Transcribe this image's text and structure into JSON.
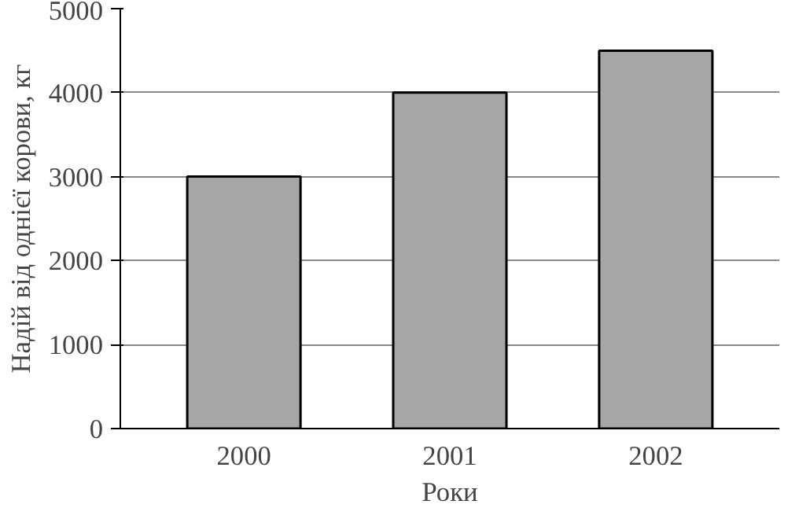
{
  "chart_data": {
    "type": "bar",
    "xlabel": "Роки",
    "ylabel": "Надій від однієї корови, кг",
    "categories": [
      "2000",
      "2001",
      "2002"
    ],
    "values": [
      3000,
      4000,
      4500
    ],
    "color": "#a6a6a6",
    "ylim": [
      0,
      5000
    ],
    "yticks": [
      0,
      1000,
      2000,
      3000,
      4000,
      5000
    ],
    "grid": "y"
  }
}
